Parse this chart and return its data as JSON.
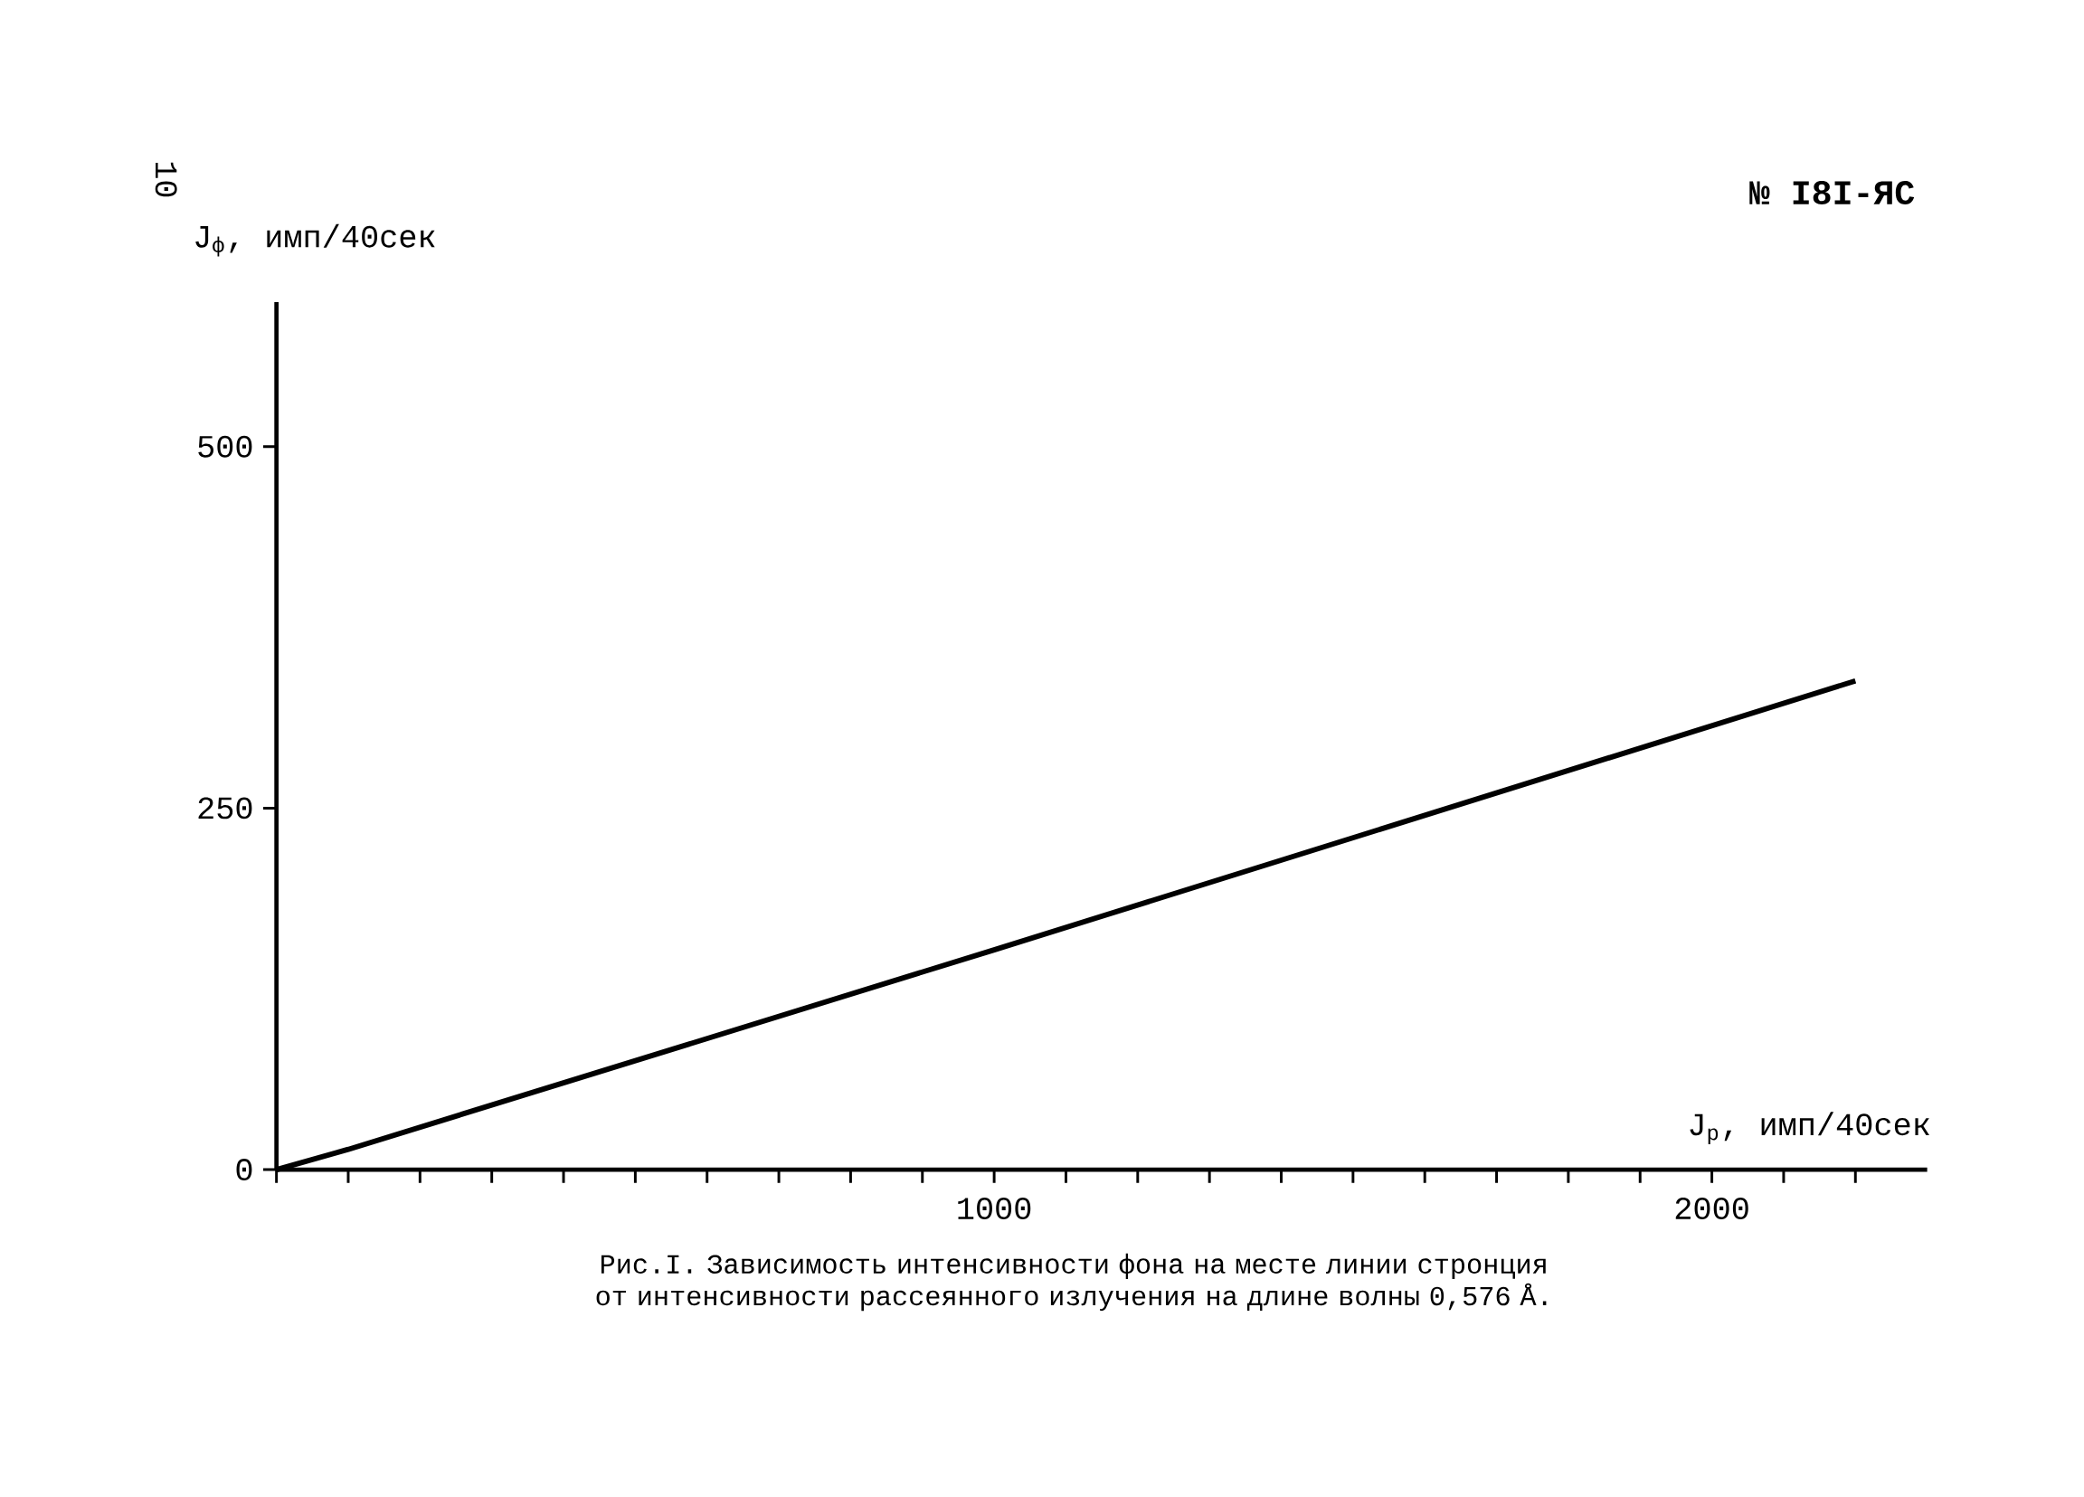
{
  "chart_data": {
    "type": "line",
    "xlabel": "J$_{р}$, имп/40сек",
    "ylabel": "J$_{ф}$, имп/40сек",
    "x": [
      0,
      100,
      1000,
      2200
    ],
    "series": [
      {
        "color": "#000000",
        "values": [
          0,
          14,
          152,
          338
        ]
      }
    ],
    "xlim": [
      0,
      2300
    ],
    "ylim": [
      0,
      600
    ],
    "xticks": [
      {
        "value": 0,
        "label": null
      },
      {
        "value": 100,
        "label": null
      },
      {
        "value": 200,
        "label": null
      },
      {
        "value": 300,
        "label": null
      },
      {
        "value": 400,
        "label": null
      },
      {
        "value": 500,
        "label": null
      },
      {
        "value": 600,
        "label": null
      },
      {
        "value": 700,
        "label": null
      },
      {
        "value": 800,
        "label": null
      },
      {
        "value": 900,
        "label": null
      },
      1000,
      {
        "value": 1100,
        "label": null
      },
      {
        "value": 1200,
        "label": null
      },
      {
        "value": 1300,
        "label": null
      },
      {
        "value": 1400,
        "label": null
      },
      {
        "value": 1500,
        "label": null
      },
      {
        "value": 1600,
        "label": null
      },
      {
        "value": 1700,
        "label": null
      },
      {
        "value": 1800,
        "label": null
      },
      {
        "value": 1900,
        "label": null
      },
      2000,
      {
        "value": 2100,
        "label": null
      },
      {
        "value": 2200,
        "label": null
      }
    ],
    "yticks": [
      0,
      250,
      500
    ],
    "grid": false,
    "legend": false,
    "marker": "none",
    "line_style": "solid",
    "annotations": [
      "10",
      "№ I8I-ЯС",
      "Рис.I. Зависимость интенсивности фона на месте линии стронция от интенсивности рассеянного излучения на длине волны 0,576 Å."
    ]
  }
}
